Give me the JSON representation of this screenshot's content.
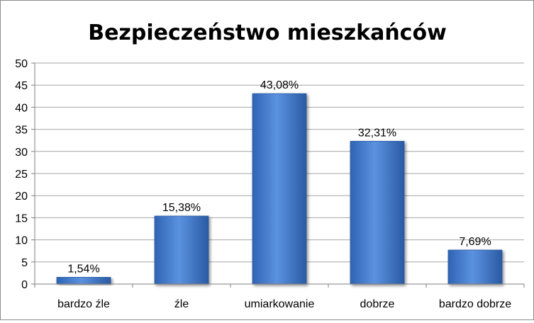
{
  "chart_data": {
    "type": "bar",
    "title": "Bezpieczeństwo mieszkańców",
    "categories": [
      "bardzo źle",
      "źle",
      "umiarkowanie",
      "dobrze",
      "bardzo dobrze"
    ],
    "values": [
      1.54,
      15.38,
      43.08,
      32.31,
      7.69
    ],
    "data_labels": [
      "1,54%",
      "15,38%",
      "43,08%",
      "32,31%",
      "7,69%"
    ],
    "yticks": [
      "0",
      "5",
      "10",
      "15",
      "20",
      "25",
      "30",
      "35",
      "40",
      "45",
      "50"
    ],
    "ylim": [
      0,
      50
    ],
    "ystep": 5,
    "xlabel": "",
    "ylabel": "",
    "grid": true,
    "legend": "none",
    "colors": {
      "bar": "#4a7fcf",
      "bar_dark": "#2a5aa3",
      "grid": "#a6a6a6",
      "text": "#000000"
    }
  }
}
